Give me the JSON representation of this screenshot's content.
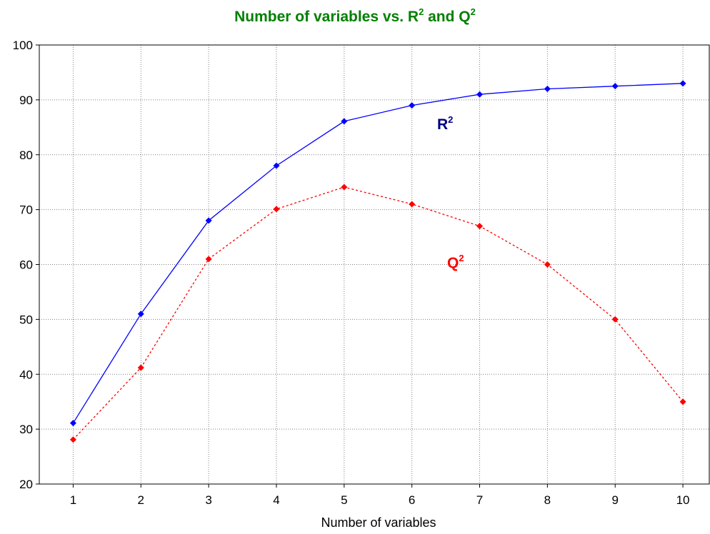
{
  "chart_data": {
    "type": "line",
    "title": {
      "text": "Number of variables vs. R",
      "sup1": "2",
      "mid": " and Q",
      "sup2": "2"
    },
    "xlabel": "Number of variables",
    "ylabel": "",
    "x": [
      1,
      2,
      3,
      4,
      5,
      6,
      7,
      8,
      9,
      10
    ],
    "xlim": [
      0.5,
      10.4
    ],
    "ylim": [
      20,
      100
    ],
    "yticks": [
      20,
      30,
      40,
      50,
      60,
      70,
      80,
      90,
      100
    ],
    "xticks": [
      1,
      2,
      3,
      4,
      5,
      6,
      7,
      8,
      9,
      10
    ],
    "grid": true,
    "series": [
      {
        "name": "R",
        "name_sup": "2",
        "color": "#0000ff",
        "line_style": "solid",
        "marker": "diamond",
        "values": [
          31.1,
          51,
          68,
          78,
          86.1,
          89,
          91,
          92,
          92.5,
          93
        ]
      },
      {
        "name": "Q",
        "name_sup": "2",
        "color": "#ff0000",
        "line_style": "dashed",
        "marker": "diamond",
        "values": [
          28.1,
          41.2,
          61,
          70.1,
          74.1,
          71,
          67,
          60,
          50,
          35
        ]
      }
    ],
    "colors": {
      "title": "#008000",
      "label_r2": "#000080",
      "label_q2": "#ff0000",
      "grid": "#808080",
      "axis": "#000000"
    }
  }
}
